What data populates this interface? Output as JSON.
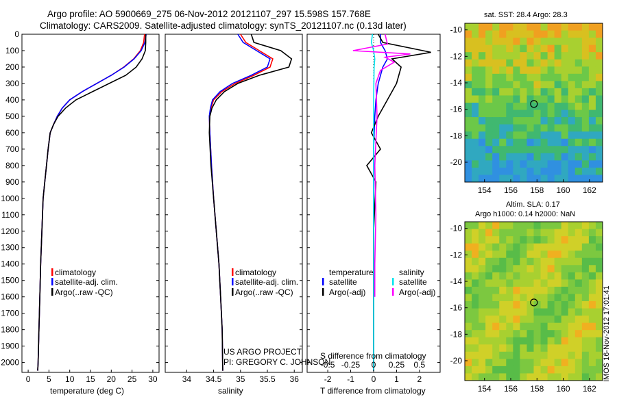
{
  "header": {
    "line1": "Argo profile: AO 5900669_275 06-Nov-2012 20121107_297 15.598S 157.768E",
    "line2": "Climatology: CARS2009. Satellite-adjusted climatology: synTS_20121107.nc (0.13d later)"
  },
  "colors": {
    "climatology": "#ff0000",
    "satellite": "#0000ff",
    "argo": "#000000",
    "satellite_salinity": "#00e5ee",
    "argo_salinity": "#ff00ff"
  },
  "legend_profile": {
    "climatology": "climatology",
    "satellite": "satellite-adj. clim.",
    "argo": "Argo(..raw -QC)"
  },
  "legend_diff": {
    "temperature_title": "temperature",
    "salinity_title": "salinity",
    "satellite": "satellite",
    "argo": "Argo(-adj)"
  },
  "project": {
    "line1": "US ARGO PROJECT",
    "line2": "PI: GREGORY C. JOHNSON"
  },
  "sst_map": {
    "title": "sat. SST: 28.4  Argo: 28.3",
    "x_ticks": [
      "154",
      "156",
      "158",
      "160",
      "162"
    ],
    "y_ticks": [
      "-10",
      "-12",
      "-14",
      "-16",
      "-18",
      "-20"
    ]
  },
  "sla_map": {
    "title_line1": "Altim. SLA: 0.17",
    "title_line2": "Argo h1000: 0.14 h2000: NaN",
    "x_ticks": [
      "154",
      "156",
      "158",
      "160",
      "162"
    ],
    "y_ticks": [
      "-10",
      "-12",
      "-14",
      "-16",
      "-18",
      "-20"
    ]
  },
  "timestamp": "IMOS 16-Nov-2012 17:01:41",
  "chart_data": [
    {
      "type": "line",
      "panel": "temperature",
      "xlabel": "temperature (deg C)",
      "ylabel": "",
      "x_ticks": [
        "0",
        "5",
        "10",
        "15",
        "20",
        "25",
        "30"
      ],
      "y_ticks": [
        "0",
        "100",
        "200",
        "300",
        "400",
        "500",
        "600",
        "700",
        "800",
        "900",
        "1000",
        "1100",
        "1200",
        "1300",
        "1400",
        "1500",
        "1600",
        "1700",
        "1800",
        "1900",
        "2000"
      ],
      "xlim": [
        -1.5,
        31.5
      ],
      "ylim": [
        0,
        2060
      ],
      "y_inverted": true,
      "series": [
        {
          "name": "climatology",
          "color": "#ff0000",
          "x": [
            28.0,
            27.8,
            27.0,
            25.4,
            23.0,
            20.0,
            16.5,
            13.0,
            10.0,
            8.2,
            7.0,
            6.1,
            5.3,
            4.8,
            4.4,
            4.0,
            3.6,
            3.3,
            3.0,
            2.8,
            2.6,
            2.4,
            2.3
          ],
          "y": [
            0,
            50,
            100,
            150,
            200,
            250,
            300,
            350,
            400,
            450,
            500,
            550,
            600,
            700,
            800,
            900,
            1000,
            1200,
            1400,
            1600,
            1800,
            2000,
            2050
          ]
        },
        {
          "name": "satellite-adj. clim.",
          "color": "#0000ff",
          "x": [
            28.4,
            28.1,
            27.2,
            25.5,
            23.1,
            20.0,
            16.5,
            13.0,
            10.0,
            8.2,
            7.0,
            6.1,
            5.3,
            4.8,
            4.4,
            4.0,
            3.6,
            3.3,
            3.0,
            2.8,
            2.6,
            2.4,
            2.3
          ],
          "y": [
            0,
            50,
            100,
            150,
            200,
            250,
            300,
            350,
            400,
            450,
            500,
            550,
            600,
            700,
            800,
            900,
            1000,
            1200,
            1400,
            1600,
            1800,
            2000,
            2050
          ]
        },
        {
          "name": "Argo(..raw -QC)",
          "color": "#000000",
          "x": [
            28.3,
            28.3,
            28.2,
            27.4,
            26.0,
            23.5,
            19.5,
            15.5,
            11.5,
            9.0,
            7.2,
            6.1,
            5.3,
            4.8,
            4.4,
            4.0,
            3.6,
            3.3,
            3.0,
            2.8,
            2.6,
            2.4,
            2.3
          ],
          "y": [
            0,
            50,
            100,
            150,
            200,
            250,
            300,
            350,
            400,
            450,
            500,
            550,
            600,
            700,
            800,
            900,
            1000,
            1200,
            1400,
            1600,
            1800,
            2000,
            2050
          ]
        }
      ]
    },
    {
      "type": "line",
      "panel": "salinity",
      "xlabel": "salinity",
      "ylabel": "",
      "x_ticks": [
        "34",
        "34.5",
        "35",
        "35.5",
        "36"
      ],
      "xlim": [
        33.6,
        36.15
      ],
      "ylim": [
        0,
        2060
      ],
      "y_inverted": true,
      "series": [
        {
          "name": "climatology",
          "color": "#ff0000",
          "x": [
            35.0,
            35.1,
            35.35,
            35.6,
            35.55,
            35.25,
            34.9,
            34.65,
            34.5,
            34.45,
            34.42,
            34.43,
            34.46,
            34.5,
            34.55,
            34.6,
            34.63,
            34.66,
            34.67
          ],
          "y": [
            0,
            50,
            100,
            150,
            200,
            250,
            300,
            350,
            400,
            450,
            500,
            600,
            800,
            1000,
            1200,
            1400,
            1600,
            1800,
            2050
          ]
        },
        {
          "name": "satellite-adj. clim.",
          "color": "#0000ff",
          "x": [
            34.95,
            35.05,
            35.3,
            35.55,
            35.5,
            35.2,
            34.85,
            34.62,
            34.48,
            34.44,
            34.42,
            34.43,
            34.46,
            34.5,
            34.55,
            34.6,
            34.63,
            34.66,
            34.67
          ],
          "y": [
            0,
            50,
            100,
            150,
            200,
            250,
            300,
            350,
            400,
            450,
            500,
            600,
            800,
            1000,
            1200,
            1400,
            1600,
            1800,
            2050
          ]
        },
        {
          "name": "Argo(..raw -QC)",
          "color": "#000000",
          "x": [
            35.2,
            35.25,
            35.75,
            35.95,
            35.9,
            35.35,
            34.95,
            34.7,
            34.55,
            34.47,
            34.43,
            34.42,
            34.45,
            34.5,
            34.55,
            34.6,
            34.63,
            34.66,
            34.67
          ],
          "y": [
            0,
            50,
            100,
            150,
            200,
            250,
            300,
            350,
            400,
            450,
            500,
            600,
            800,
            1000,
            1200,
            1400,
            1600,
            1800,
            2050
          ]
        }
      ]
    },
    {
      "type": "line",
      "panel": "difference",
      "xlabel": "T difference from climatology",
      "xlabel_top": "S difference from climatology",
      "ylabel": "",
      "x_ticks": [
        "-2",
        "-1",
        "0",
        "1",
        "2"
      ],
      "x_ticks_s": [
        "-0.5",
        "-0.25",
        "0",
        "0.25",
        "0.5"
      ],
      "xlim": [
        -2.9,
        2.9
      ],
      "ylim": [
        0,
        2060
      ],
      "y_inverted": true,
      "series": [
        {
          "name": "temperature satellite",
          "color": "#0000ff",
          "x": [
            0.3,
            0.3,
            0.5,
            0.6,
            0.4,
            0.2,
            0.1,
            0.05,
            0.0,
            0.0,
            0.0,
            0.0
          ],
          "y": [
            0,
            50,
            100,
            150,
            200,
            300,
            400,
            500,
            700,
            1000,
            1500,
            2050
          ]
        },
        {
          "name": "temperature Argo(-adj)",
          "color": "#000000",
          "x": [
            0.2,
            0.4,
            2.5,
            0.8,
            1.2,
            1.0,
            0.6,
            0.2,
            -0.1,
            0.3,
            -0.3,
            0.1,
            0.0,
            0.0
          ],
          "y": [
            0,
            50,
            110,
            150,
            200,
            300,
            400,
            500,
            600,
            700,
            800,
            900,
            1200,
            2050
          ]
        },
        {
          "name": "salinity satellite",
          "color": "#00e5ee",
          "x": [
            -0.05,
            -0.1,
            0.0,
            0.05,
            0.02,
            0.0,
            0.0,
            0.0,
            0.0
          ],
          "y": [
            0,
            50,
            100,
            150,
            200,
            400,
            700,
            1200,
            2050
          ]
        },
        {
          "name": "salinity Argo(-adj)",
          "color": "#ff00ff",
          "x": [
            0.5,
            0.6,
            -0.9,
            1.6,
            0.5,
            0.9,
            0.3,
            0.1,
            0.15,
            0.05,
            0.1,
            0.05,
            0.05
          ],
          "y": [
            0,
            60,
            100,
            120,
            140,
            170,
            220,
            300,
            500,
            800,
            1100,
            1400,
            1600
          ]
        }
      ]
    }
  ]
}
